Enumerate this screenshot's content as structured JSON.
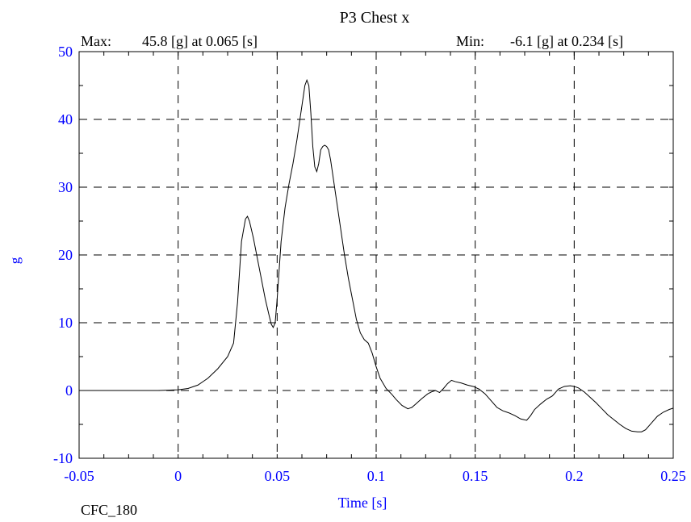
{
  "chart_data": {
    "type": "line",
    "title": "P3 Chest x",
    "max_label": "Max:",
    "max_value": "45.8 [g] at 0.065 [s]",
    "min_label": "Min:",
    "min_value": "-6.1 [g] at 0.234 [s]",
    "xlabel": "Time [s]",
    "ylabel": "g",
    "footer": "CFC_180",
    "xlim": [
      -0.05,
      0.25
    ],
    "ylim": [
      -10,
      50
    ],
    "x_ticks": [
      -0.05,
      0,
      0.05,
      0.1,
      0.15,
      0.2,
      0.25
    ],
    "x_tick_labels": [
      "-0.05",
      "0",
      "0.05",
      "0.1",
      "0.15",
      "0.2",
      "0.25"
    ],
    "y_ticks": [
      -10,
      0,
      10,
      20,
      30,
      40,
      50
    ],
    "y_tick_labels": [
      "-10",
      "0",
      "10",
      "20",
      "30",
      "40",
      "50"
    ],
    "grid": true,
    "colors": {
      "axis_text": "#0000ff",
      "line": "#000000"
    },
    "series": [
      {
        "x": [
          -0.05,
          -0.03,
          -0.01,
          0,
          0.005,
          0.01,
          0.015,
          0.02,
          0.025,
          0.028,
          0.03,
          0.032,
          0.034,
          0.035,
          0.036,
          0.038,
          0.04,
          0.042,
          0.044,
          0.046,
          0.047,
          0.048,
          0.049,
          0.05,
          0.052,
          0.054,
          0.056,
          0.058,
          0.06,
          0.062,
          0.064,
          0.065,
          0.066,
          0.067,
          0.068,
          0.069,
          0.07,
          0.071,
          0.072,
          0.073,
          0.074,
          0.075,
          0.076,
          0.077,
          0.078,
          0.08,
          0.082,
          0.084,
          0.086,
          0.088,
          0.09,
          0.092,
          0.094,
          0.096,
          0.098,
          0.1,
          0.102,
          0.105,
          0.108,
          0.11,
          0.113,
          0.116,
          0.118,
          0.12,
          0.123,
          0.126,
          0.128,
          0.13,
          0.132,
          0.134,
          0.136,
          0.138,
          0.14,
          0.143,
          0.146,
          0.149,
          0.152,
          0.155,
          0.158,
          0.161,
          0.164,
          0.167,
          0.17,
          0.173,
          0.176,
          0.178,
          0.18,
          0.183,
          0.186,
          0.189,
          0.192,
          0.195,
          0.198,
          0.2,
          0.202,
          0.205,
          0.208,
          0.211,
          0.214,
          0.217,
          0.22,
          0.223,
          0.226,
          0.229,
          0.232,
          0.234,
          0.236,
          0.239,
          0.242,
          0.245,
          0.248,
          0.25
        ],
        "y": [
          0,
          0,
          0,
          0.1,
          0.3,
          0.8,
          1.8,
          3.2,
          5,
          7,
          13,
          22,
          25.3,
          25.7,
          25,
          22.5,
          19.5,
          16.5,
          13.5,
          11,
          9.8,
          9.3,
          10,
          13.5,
          22,
          27,
          30.5,
          33.5,
          37,
          41,
          45,
          45.8,
          45,
          41,
          36,
          33,
          32.3,
          33.5,
          35.5,
          36,
          36.2,
          36,
          35.5,
          34,
          32,
          28,
          24,
          20,
          16.5,
          13.5,
          10.5,
          8.5,
          7.5,
          7,
          5.5,
          3.5,
          1.8,
          0.3,
          -0.6,
          -1.3,
          -2.2,
          -2.7,
          -2.5,
          -2,
          -1.2,
          -0.5,
          -0.2,
          0,
          -0.3,
          0.3,
          1,
          1.5,
          1.3,
          1.1,
          0.8,
          0.6,
          0.2,
          -0.5,
          -1.5,
          -2.5,
          -3,
          -3.3,
          -3.7,
          -4.2,
          -4.4,
          -3.7,
          -2.8,
          -2,
          -1.3,
          -0.8,
          0.2,
          0.6,
          0.7,
          0.6,
          0.4,
          -0.2,
          -1,
          -1.8,
          -2.7,
          -3.6,
          -4.3,
          -5,
          -5.6,
          -6,
          -6.1,
          -6.1,
          -5.8,
          -4.8,
          -3.8,
          -3.2,
          -2.8,
          -2.6
        ]
      }
    ]
  }
}
